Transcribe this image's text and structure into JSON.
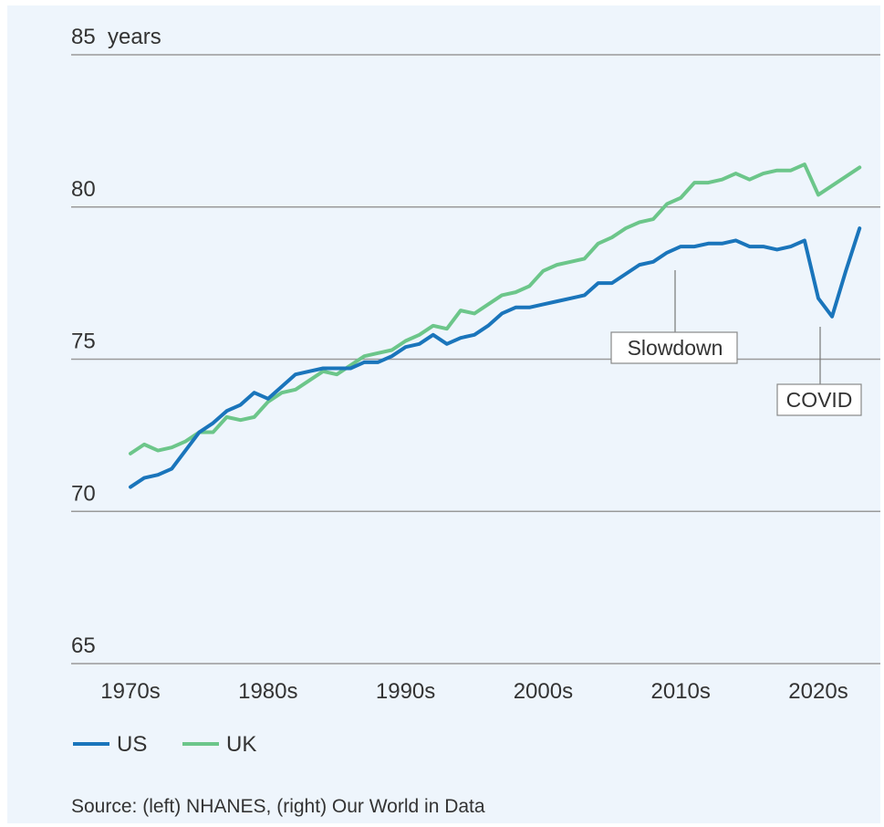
{
  "chart_data": {
    "type": "line",
    "categories": [
      "1970s",
      null,
      null,
      null,
      null,
      null,
      null,
      null,
      null,
      null,
      "1980s",
      null,
      null,
      null,
      null,
      null,
      null,
      null,
      null,
      null,
      "1990s",
      null,
      null,
      null,
      null,
      null,
      null,
      null,
      null,
      null,
      "2000s",
      null,
      null,
      null,
      null,
      null,
      null,
      null,
      null,
      null,
      "2010s",
      null,
      null,
      null,
      null,
      null,
      null,
      null,
      null,
      null,
      "2020s",
      null,
      null,
      null
    ],
    "series": [
      {
        "name": "US",
        "color": "#1a75bb",
        "values": [
          70.8,
          71.1,
          71.2,
          71.4,
          72.0,
          72.6,
          72.9,
          73.3,
          73.5,
          73.9,
          73.7,
          74.1,
          74.5,
          74.6,
          74.7,
          74.7,
          74.7,
          74.9,
          74.9,
          75.1,
          75.4,
          75.5,
          75.8,
          75.5,
          75.7,
          75.8,
          76.1,
          76.5,
          76.7,
          76.7,
          76.8,
          76.9,
          77.0,
          77.1,
          77.5,
          77.5,
          77.8,
          78.1,
          78.2,
          78.5,
          78.7,
          78.7,
          78.8,
          78.8,
          78.9,
          78.7,
          78.7,
          78.6,
          78.7,
          78.9,
          77.0,
          76.4,
          77.9,
          79.3
        ]
      },
      {
        "name": "UK",
        "color": "#6cc68a",
        "values": [
          71.9,
          72.2,
          72.0,
          72.1,
          72.3,
          72.6,
          72.6,
          73.1,
          73.0,
          73.1,
          73.6,
          73.9,
          74.0,
          74.3,
          74.6,
          74.5,
          74.8,
          75.1,
          75.2,
          75.3,
          75.6,
          75.8,
          76.1,
          76.0,
          76.6,
          76.5,
          76.8,
          77.1,
          77.2,
          77.4,
          77.9,
          78.1,
          78.2,
          78.3,
          78.8,
          79.0,
          79.3,
          79.5,
          79.6,
          80.1,
          80.3,
          80.8,
          80.8,
          80.9,
          81.1,
          80.9,
          81.1,
          81.2,
          81.2,
          81.4,
          80.4,
          80.7,
          81.0,
          81.3
        ]
      }
    ],
    "ylim": [
      65,
      85
    ],
    "yticks": [
      65,
      70,
      75,
      80,
      {
        "value": 85,
        "label": "85  years"
      }
    ],
    "grid": true,
    "legend": "bottom-left",
    "annotations": [
      {
        "text": "Slowdown"
      },
      {
        "text": "COVID"
      }
    ],
    "source": "Source: (left) NHANES, (right) Our World in Data"
  }
}
